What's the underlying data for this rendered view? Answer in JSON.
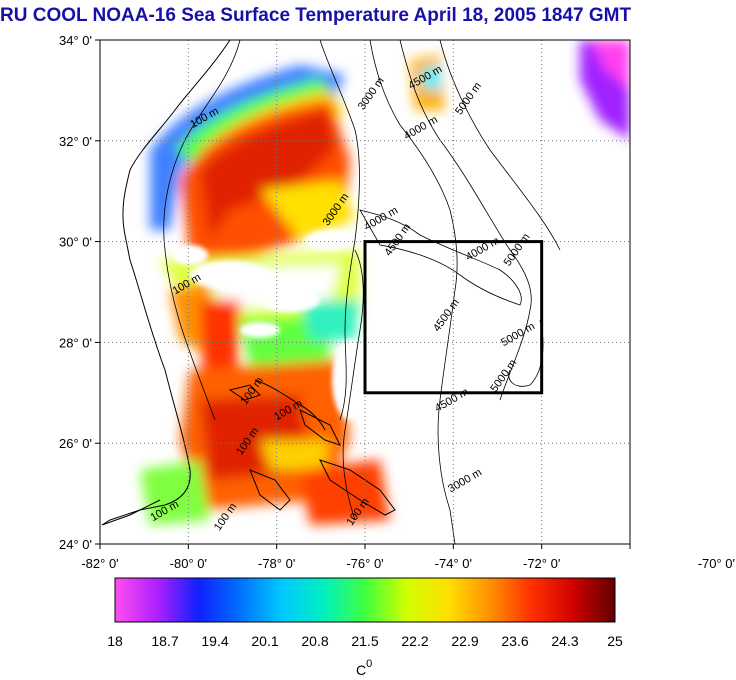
{
  "title": "RU COOL  NOAA-16 Sea Surface Temperature April 18, 2005 1847 GMT",
  "map": {
    "lat_ticks": [
      "34° 0'",
      "32° 0'",
      "30° 0'",
      "28° 0'",
      "26° 0'",
      "24° 0'"
    ],
    "lon_ticks": [
      "-82° 0'",
      "-80° 0'",
      "-78° 0'",
      "-76° 0'",
      "-74° 0'",
      "-72° 0'",
      "-70° 0'"
    ],
    "lon_range": [
      -82,
      -70
    ],
    "lat_range": [
      24,
      34
    ],
    "study_box": {
      "lon": [
        -76,
        -72
      ],
      "lat": [
        27,
        30
      ]
    },
    "contour_labels": [
      {
        "text": "100 m",
        "lon": -79.6,
        "lat": 32.4
      },
      {
        "text": "3000 m",
        "lon": -75.8,
        "lat": 32.9
      },
      {
        "text": "4500 m",
        "lon": -74.6,
        "lat": 33.2
      },
      {
        "text": "5000 m",
        "lon": -73.6,
        "lat": 32.8
      },
      {
        "text": "4000 m",
        "lon": -74.7,
        "lat": 32.2
      },
      {
        "text": "3000 m",
        "lon": -76.6,
        "lat": 30.6
      },
      {
        "text": "4000 m",
        "lon": -75.6,
        "lat": 30.4
      },
      {
        "text": "4500 m",
        "lon": -75.2,
        "lat": 30.0
      },
      {
        "text": "4000 m",
        "lon": -73.3,
        "lat": 29.8
      },
      {
        "text": "5000 m",
        "lon": -72.5,
        "lat": 29.8
      },
      {
        "text": "100 m",
        "lon": -80.0,
        "lat": 29.1
      },
      {
        "text": "4500 m",
        "lon": -74.1,
        "lat": 28.5
      },
      {
        "text": "5000 m",
        "lon": -72.5,
        "lat": 28.1
      },
      {
        "text": "5000 m",
        "lon": -72.8,
        "lat": 27.3
      },
      {
        "text": "4500 m",
        "lon": -74.0,
        "lat": 26.8
      },
      {
        "text": "100 m",
        "lon": -78.5,
        "lat": 27.0
      },
      {
        "text": "100 m",
        "lon": -77.7,
        "lat": 26.6
      },
      {
        "text": "100 m",
        "lon": -78.6,
        "lat": 26.0
      },
      {
        "text": "3000 m",
        "lon": -73.7,
        "lat": 25.2
      },
      {
        "text": "100 m",
        "lon": -79.1,
        "lat": 24.5
      },
      {
        "text": "100 m",
        "lon": -80.5,
        "lat": 24.6
      },
      {
        "text": "100 m",
        "lon": -76.1,
        "lat": 24.6
      }
    ]
  },
  "colorbar": {
    "tick_labels": [
      "18",
      "18.7",
      "19.4",
      "20.1",
      "20.8",
      "21.5",
      "22.2",
      "22.9",
      "23.6",
      "24.3",
      "25"
    ],
    "unit_label": "C",
    "unit_superscript": "0",
    "colors": [
      "#ff4ef0",
      "#b020ff",
      "#1020ff",
      "#0070ff",
      "#00c8ff",
      "#00f0c0",
      "#40ff40",
      "#d0ff00",
      "#ffe000",
      "#ff9000",
      "#ff3000",
      "#d00000",
      "#600000"
    ]
  }
}
